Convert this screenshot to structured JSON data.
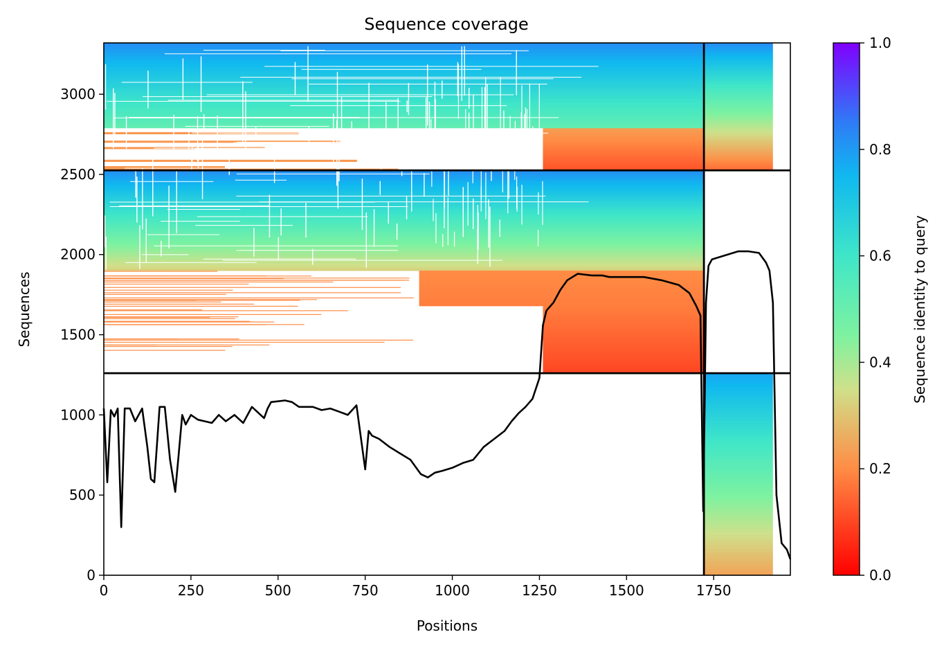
{
  "chart_data": {
    "type": "heatmap",
    "title": "Sequence coverage",
    "xlabel": "Positions",
    "ylabel": "Sequences",
    "xlim": [
      0,
      1970
    ],
    "ylim": [
      0,
      3320
    ],
    "xticks": [
      0,
      250,
      500,
      750,
      1000,
      1250,
      1500,
      1750
    ],
    "yticks": [
      0,
      500,
      1000,
      1500,
      2000,
      2500,
      3000
    ],
    "grid": false,
    "colorbar": {
      "label": "Sequence identity to query",
      "range": [
        0.0,
        1.0
      ],
      "ticks": [
        "0.0",
        "0.2",
        "0.4",
        "0.6",
        "0.8",
        "1.0"
      ],
      "colormap": "rainbow_r",
      "stops": [
        {
          "v": 0.0,
          "color": "#ff0000"
        },
        {
          "v": 0.2,
          "color": "#ff8c45"
        },
        {
          "v": 0.35,
          "color": "#cfe08a"
        },
        {
          "v": 0.45,
          "color": "#7ef2a0"
        },
        {
          "v": 0.6,
          "color": "#3fe6c8"
        },
        {
          "v": 0.75,
          "color": "#10b8f0"
        },
        {
          "v": 0.85,
          "color": "#2e7cf6"
        },
        {
          "v": 1.0,
          "color": "#8000ff"
        }
      ]
    },
    "chain_boundaries": {
      "positions": [
        1722
      ],
      "sequences": [
        1260,
        2525
      ]
    },
    "coverage_blocks": [
      {
        "x0": 0,
        "x1": 1722,
        "y0": 2525,
        "y1": 3320,
        "id_top": 0.82,
        "id_bottom": 0.36,
        "cut_y": 2800,
        "tail_start": 1260,
        "tail_y0": 2525,
        "tail_id_top": 0.24,
        "tail_id_bottom": 0.12
      },
      {
        "x0": 1722,
        "x1": 1920,
        "y0": 2525,
        "y1": 3320,
        "id_top": 0.82,
        "id_bottom": 0.15
      },
      {
        "x0": 0,
        "x1": 1722,
        "y0": 1900,
        "y1": 2525,
        "id_top": 0.82,
        "id_bottom": 0.32
      },
      {
        "x0": 905,
        "x1": 1722,
        "y0": 1680,
        "y1": 1900,
        "id_top": 0.2,
        "id_bottom": 0.18
      },
      {
        "x0": 1260,
        "x1": 1722,
        "y0": 1260,
        "y1": 1680,
        "id_top": 0.18,
        "id_bottom": 0.1
      },
      {
        "x0": 1722,
        "x1": 1920,
        "y0": 0,
        "y1": 1260,
        "id_top": 0.78,
        "id_bottom": 0.24
      }
    ],
    "coverage_line": {
      "x": [
        0,
        10,
        20,
        30,
        40,
        50,
        60,
        75,
        90,
        110,
        125,
        135,
        145,
        160,
        175,
        190,
        205,
        215,
        225,
        235,
        250,
        270,
        290,
        310,
        330,
        350,
        375,
        400,
        425,
        450,
        460,
        470,
        480,
        500,
        520,
        540,
        560,
        580,
        600,
        625,
        650,
        675,
        700,
        725,
        750,
        760,
        770,
        790,
        820,
        850,
        880,
        910,
        930,
        950,
        970,
        1000,
        1030,
        1060,
        1090,
        1120,
        1150,
        1170,
        1190,
        1210,
        1230,
        1250,
        1260,
        1270,
        1290,
        1310,
        1330,
        1360,
        1400,
        1430,
        1450,
        1500,
        1550,
        1600,
        1650,
        1680,
        1700,
        1712,
        1720,
        1728,
        1735,
        1745,
        1760,
        1790,
        1820,
        1850,
        1880,
        1900,
        1910,
        1920,
        1930,
        1945,
        1960,
        1970
      ],
      "y": [
        1040,
        580,
        1030,
        990,
        1040,
        300,
        1040,
        1040,
        960,
        1040,
        800,
        600,
        580,
        1050,
        1050,
        720,
        520,
        760,
        1000,
        940,
        1000,
        970,
        960,
        950,
        1000,
        960,
        1000,
        950,
        1050,
        1000,
        980,
        1040,
        1080,
        1085,
        1090,
        1080,
        1050,
        1050,
        1050,
        1030,
        1040,
        1020,
        1000,
        1060,
        660,
        900,
        870,
        850,
        800,
        760,
        720,
        630,
        610,
        640,
        650,
        670,
        700,
        720,
        800,
        850,
        900,
        960,
        1010,
        1050,
        1100,
        1230,
        1560,
        1650,
        1700,
        1780,
        1840,
        1880,
        1870,
        1870,
        1860,
        1860,
        1860,
        1840,
        1810,
        1760,
        1680,
        1620,
        400,
        1700,
        1930,
        1970,
        1980,
        2000,
        2020,
        2020,
        2010,
        1950,
        1900,
        1700,
        500,
        200,
        160,
        100
      ]
    }
  }
}
